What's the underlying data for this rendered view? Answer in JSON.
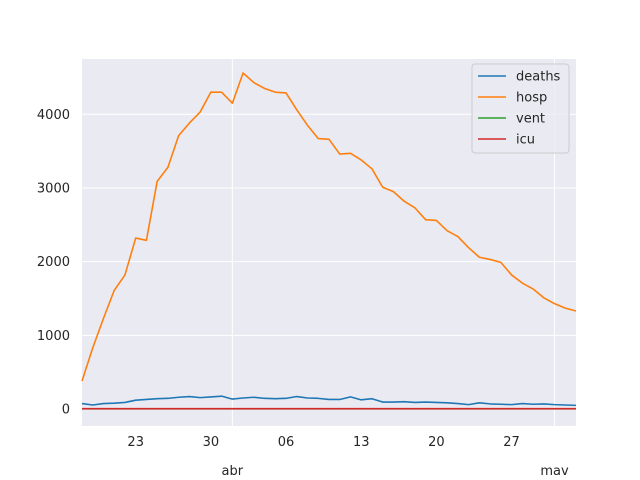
{
  "chart_data": {
    "type": "line",
    "background": "#eaeaf2",
    "grid": true,
    "legend_position": "top-right",
    "x": [
      "2020-03-18",
      "2020-03-19",
      "2020-03-20",
      "2020-03-21",
      "2020-03-22",
      "2020-03-23",
      "2020-03-24",
      "2020-03-25",
      "2020-03-26",
      "2020-03-27",
      "2020-03-28",
      "2020-03-29",
      "2020-03-30",
      "2020-03-31",
      "2020-04-01",
      "2020-04-02",
      "2020-04-03",
      "2020-04-04",
      "2020-04-05",
      "2020-04-06",
      "2020-04-07",
      "2020-04-08",
      "2020-04-09",
      "2020-04-10",
      "2020-04-11",
      "2020-04-12",
      "2020-04-13",
      "2020-04-14",
      "2020-04-15",
      "2020-04-16",
      "2020-04-17",
      "2020-04-18",
      "2020-04-19",
      "2020-04-20",
      "2020-04-21",
      "2020-04-22",
      "2020-04-23",
      "2020-04-24",
      "2020-04-25",
      "2020-04-26",
      "2020-04-27",
      "2020-04-28",
      "2020-04-29",
      "2020-04-30",
      "2020-05-01",
      "2020-05-02",
      "2020-05-03"
    ],
    "xlim": [
      "2020-03-18",
      "2020-05-03"
    ],
    "ylim": [
      -230,
      4750
    ],
    "yticks": [
      0,
      1000,
      2000,
      3000,
      4000
    ],
    "ytick_labels": [
      "0",
      "1000",
      "2000",
      "3000",
      "4000"
    ],
    "xticks": [
      "2020-03-23",
      "2020-03-30",
      "2020-04-06",
      "2020-04-13",
      "2020-04-20",
      "2020-04-27"
    ],
    "xtick_labels": [
      "23",
      "30",
      "06",
      "13",
      "20",
      "27"
    ],
    "month_ticks": [
      "2020-04-01",
      "2020-05-01"
    ],
    "month_labels": [
      "abr",
      "mav"
    ],
    "series": [
      {
        "name": "deaths",
        "color": "#1f77b4",
        "values": [
          75,
          55,
          75,
          80,
          90,
          120,
          130,
          140,
          145,
          160,
          170,
          155,
          165,
          175,
          135,
          150,
          160,
          145,
          140,
          145,
          170,
          150,
          145,
          130,
          130,
          165,
          125,
          140,
          95,
          95,
          100,
          90,
          95,
          90,
          85,
          75,
          60,
          85,
          70,
          65,
          60,
          75,
          65,
          70,
          60,
          55,
          50
        ]
      },
      {
        "name": "hosp",
        "color": "#ff7f0e",
        "values": [
          380,
          830,
          1230,
          1610,
          1820,
          2320,
          2290,
          3090,
          3280,
          3710,
          3880,
          4030,
          4300,
          4300,
          4150,
          4560,
          4430,
          4350,
          4300,
          4290,
          4060,
          3850,
          3670,
          3660,
          3460,
          3470,
          3380,
          3260,
          3010,
          2950,
          2820,
          2730,
          2570,
          2560,
          2420,
          2340,
          2190,
          2060,
          2030,
          1990,
          1820,
          1710,
          1630,
          1510,
          1430,
          1370,
          1330
        ]
      },
      {
        "name": "vent",
        "color": "#2ca02c",
        "values": [
          3,
          3,
          3,
          3,
          3,
          3,
          3,
          3,
          3,
          3,
          3,
          3,
          3,
          3,
          3,
          3,
          3,
          3,
          3,
          3,
          3,
          3,
          3,
          3,
          3,
          3,
          3,
          3,
          3,
          3,
          3,
          3,
          3,
          3,
          3,
          3,
          3,
          3,
          3,
          3,
          3,
          3,
          3,
          3,
          3,
          3,
          3
        ]
      },
      {
        "name": "icu",
        "color": "#d62728",
        "values": [
          5,
          5,
          5,
          5,
          5,
          5,
          5,
          5,
          5,
          5,
          5,
          5,
          5,
          5,
          5,
          5,
          5,
          5,
          5,
          5,
          5,
          5,
          5,
          5,
          5,
          5,
          5,
          5,
          5,
          5,
          5,
          5,
          5,
          5,
          5,
          5,
          5,
          5,
          5,
          5,
          5,
          5,
          5,
          5,
          5,
          5,
          5
        ]
      }
    ]
  }
}
